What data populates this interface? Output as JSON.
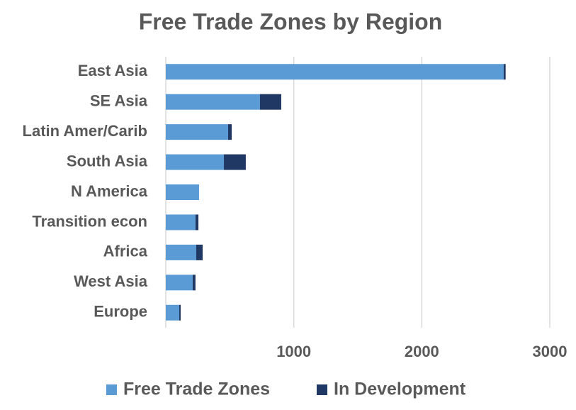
{
  "chart_data": {
    "type": "bar",
    "orientation": "horizontal",
    "stacked": true,
    "title": "Free Trade Zones by Region",
    "categories": [
      "East Asia",
      "SE Asia",
      "Latin Amer/Carib",
      "South Asia",
      "N America",
      "Transition econ",
      "Africa",
      "West Asia",
      "Europe"
    ],
    "series": [
      {
        "name": "Free Trade Zones",
        "color": "#5b9bd5",
        "values": [
          2640,
          736,
          487,
          454,
          260,
          232,
          238,
          210,
          105
        ]
      },
      {
        "name": "In Development",
        "color": "#203864",
        "values": [
          15,
          166,
          28,
          171,
          0,
          23,
          50,
          22,
          11
        ]
      }
    ],
    "xlim": [
      0,
      3000
    ],
    "xticks": [
      1000,
      2000,
      3000
    ],
    "grid": true,
    "legend": "bottom"
  }
}
